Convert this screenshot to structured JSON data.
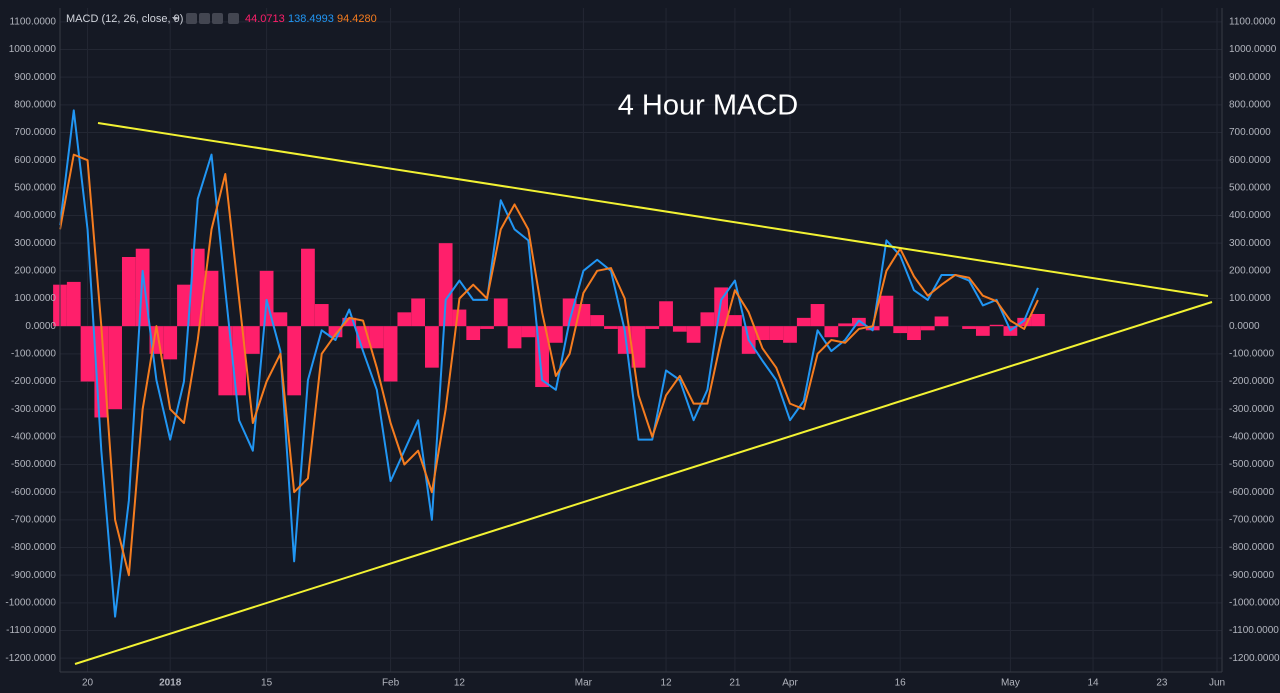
{
  "chart_data": {
    "type": "line",
    "indicator": "MACD (12, 26, close, 9)",
    "title": "4 Hour MACD",
    "categories": [
      null,
      null,
      "20",
      null,
      null,
      null,
      null,
      null,
      "2018",
      null,
      null,
      null,
      null,
      null,
      null,
      "15",
      null,
      null,
      null,
      null,
      null,
      null,
      null,
      null,
      "Feb",
      null,
      null,
      null,
      null,
      "12",
      null,
      null,
      null,
      null,
      null,
      null,
      null,
      null,
      "Mar",
      null,
      null,
      null,
      null,
      null,
      "12",
      null,
      null,
      null,
      null,
      "21",
      null,
      null,
      null,
      "Apr",
      null,
      null,
      null,
      null,
      null,
      null,
      null,
      "16",
      null,
      null,
      null,
      null,
      null,
      null,
      null,
      "May",
      null,
      null,
      null,
      null,
      null,
      "14",
      null,
      null,
      null,
      null,
      "23",
      null,
      null,
      null,
      "Jun"
    ],
    "series": [
      {
        "type": "bar",
        "color": "#ff1f6b",
        "legend_value": "44.0713",
        "values": [
          150,
          160,
          -200,
          -330,
          -300,
          250,
          280,
          -100,
          -120,
          150,
          280,
          200,
          -250,
          -250,
          -100,
          200,
          50,
          -250,
          280,
          80,
          -40,
          30,
          -80,
          -80,
          -200,
          50,
          100,
          -150,
          300,
          60,
          -50,
          -10,
          100,
          -80,
          -40,
          -220,
          -60,
          100,
          80,
          40,
          -10,
          -100,
          -150,
          -10,
          90,
          -20,
          -60,
          50,
          140,
          40,
          -100,
          -50,
          -50,
          -60,
          30,
          80,
          -40,
          10,
          30,
          -15,
          110,
          -25,
          -50,
          -15,
          35,
          0,
          -10,
          -35,
          5,
          -35,
          30,
          44.0713,
          null,
          null,
          null,
          null,
          null,
          null,
          null,
          null,
          null,
          null,
          null,
          null,
          null
        ]
      },
      {
        "type": "line",
        "color": "#2196f3",
        "legend_value": "138.4993",
        "values": [
          365,
          780,
          350,
          -450,
          -1050,
          -630,
          200,
          -195,
          -410,
          -200,
          460,
          620,
          130,
          -340,
          -450,
          95,
          -90,
          -850,
          -195,
          -15,
          -50,
          60,
          -90,
          -230,
          -560,
          -450,
          -340,
          -700,
          95,
          165,
          95,
          95,
          455,
          350,
          310,
          -195,
          -230,
          20,
          200,
          240,
          200,
          -15,
          -410,
          -410,
          -160,
          -195,
          -340,
          -230,
          95,
          165,
          -50,
          -125,
          -195,
          -340,
          -270,
          -15,
          -90,
          -50,
          20,
          -15,
          310,
          255,
          130,
          95,
          185,
          185,
          165,
          75,
          95,
          -15,
          20,
          138.4993,
          null,
          null,
          null,
          null,
          null,
          null,
          null,
          null,
          null,
          null,
          null,
          null,
          null
        ]
      },
      {
        "type": "line",
        "color": "#f57c1f",
        "legend_value": "94.4280",
        "values": [
          350,
          620,
          600,
          0,
          -700,
          -900,
          -300,
          0,
          -300,
          -350,
          -50,
          350,
          550,
          100,
          -350,
          -200,
          -100,
          -600,
          -550,
          -100,
          -30,
          30,
          20,
          -150,
          -350,
          -500,
          -450,
          -600,
          -300,
          100,
          150,
          100,
          350,
          440,
          350,
          50,
          -180,
          -100,
          120,
          200,
          210,
          100,
          -250,
          -400,
          -250,
          -180,
          -280,
          -280,
          -50,
          130,
          50,
          -80,
          -150,
          -280,
          -300,
          -100,
          -50,
          -60,
          -10,
          0,
          200,
          280,
          180,
          110,
          150,
          185,
          175,
          110,
          90,
          20,
          -10,
          94.428,
          null,
          null,
          null,
          null,
          null,
          null,
          null,
          null,
          null,
          null,
          null,
          null,
          null
        ]
      }
    ],
    "ylim": [
      -1250,
      1150
    ],
    "yticks": [
      {
        "value": 1100,
        "label": "1100.0000"
      },
      {
        "value": 1000,
        "label": "1000.0000"
      },
      {
        "value": 900,
        "label": "900.0000"
      },
      {
        "value": 800,
        "label": "800.0000"
      },
      {
        "value": 700,
        "label": "700.0000"
      },
      {
        "value": 600,
        "label": "600.0000"
      },
      {
        "value": 500,
        "label": "500.0000"
      },
      {
        "value": 400,
        "label": "400.0000"
      },
      {
        "value": 300,
        "label": "300.0000"
      },
      {
        "value": 200,
        "label": "200.0000"
      },
      {
        "value": 100,
        "label": "100.0000"
      },
      {
        "value": 0,
        "label": "0.0000"
      },
      {
        "value": -100,
        "label": "-100.0000"
      },
      {
        "value": -200,
        "label": "-200.0000"
      },
      {
        "value": -300,
        "label": "-300.0000"
      },
      {
        "value": -400,
        "label": "-400.0000"
      },
      {
        "value": -500,
        "label": "-500.0000"
      },
      {
        "value": -600,
        "label": "-600.0000"
      },
      {
        "value": -700,
        "label": "-700.0000"
      },
      {
        "value": -800,
        "label": "-800.0000"
      },
      {
        "value": -900,
        "label": "-900.0000"
      },
      {
        "value": -1000,
        "label": "-1000.0000"
      },
      {
        "value": -1100,
        "label": "-1100.0000"
      },
      {
        "value": -1200,
        "label": "-1200.0000"
      }
    ],
    "grid": true
  }
}
